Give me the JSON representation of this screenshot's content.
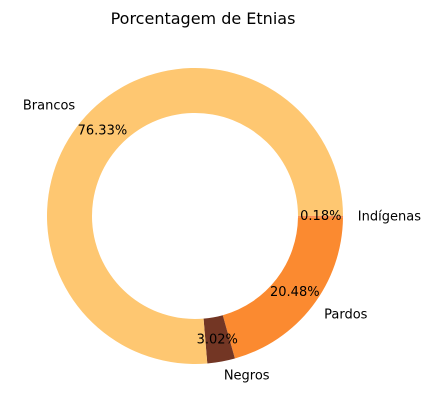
{
  "chart_data": {
    "type": "pie",
    "variant": "donut",
    "title": "Porcentagem de Etnias",
    "start_angle_deg": 0,
    "direction": "clockwise",
    "slices": [
      {
        "label": "Indígenas",
        "value": 0.18,
        "pct_text": "0.18%",
        "color": "#fc8d59"
      },
      {
        "label": "Pardos",
        "value": 20.48,
        "pct_text": "20.48%",
        "color": "#fb8a30"
      },
      {
        "label": "Negros",
        "value": 3.02,
        "pct_text": "3.02%",
        "color": "#733624"
      },
      {
        "label": "Brancos",
        "value": 76.33,
        "pct_text": "76.33%",
        "color": "#fec771"
      }
    ]
  }
}
